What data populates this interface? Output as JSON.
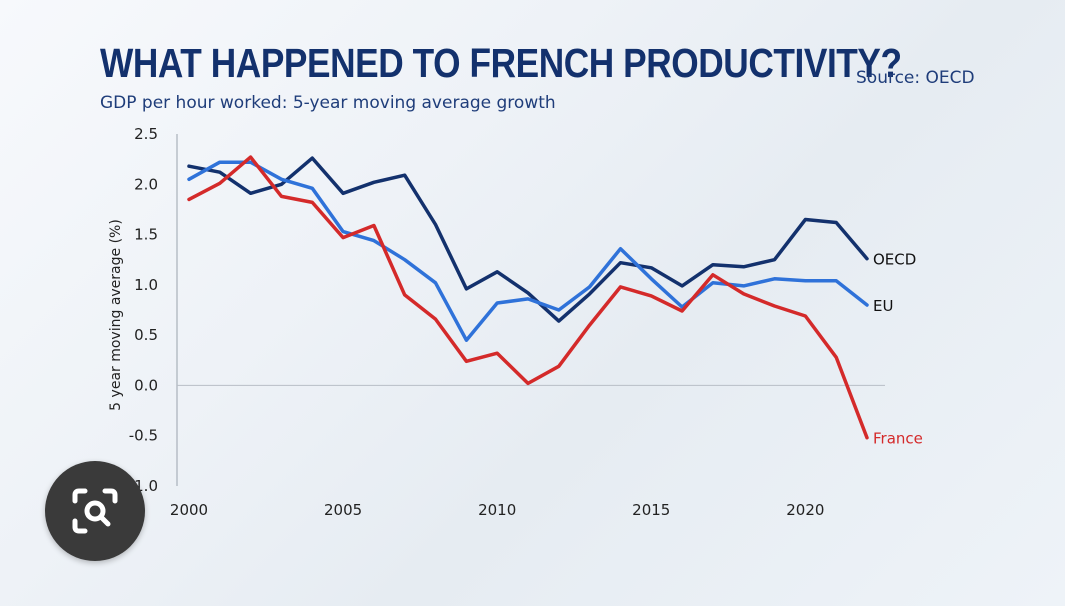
{
  "header": {
    "title": "WHAT HAPPENED TO FRENCH PRODUCTIVITY?",
    "subtitle": "GDP per hour worked: 5-year moving average growth",
    "source": "Source: OECD"
  },
  "lens_button": {
    "icon": "lens-search-icon"
  },
  "chart_data": {
    "type": "line",
    "title": "WHAT HAPPENED TO FRENCH PRODUCTIVITY?",
    "subtitle": "GDP per hour worked: 5-year moving average growth",
    "xlabel": "",
    "ylabel": "5 year moving average (%)",
    "xlim": [
      2000,
      2022
    ],
    "ylim": [
      -1.0,
      2.5
    ],
    "x_ticks": [
      2000,
      2005,
      2010,
      2015,
      2020
    ],
    "y_ticks": [
      2.5,
      2.0,
      1.5,
      1.0,
      0.5,
      0.0,
      -0.5,
      -1.0
    ],
    "y_tick_labels": [
      "2.5",
      "2.0",
      "1.5",
      "1.0",
      "0.5",
      "0.0",
      "-0.5",
      "-1.0"
    ],
    "x": [
      2000,
      2001,
      2002,
      2003,
      2004,
      2005,
      2006,
      2007,
      2008,
      2009,
      2010,
      2011,
      2012,
      2013,
      2014,
      2015,
      2016,
      2017,
      2018,
      2019,
      2020,
      2021,
      2022
    ],
    "series": [
      {
        "name": "OECD",
        "color": "#13316d",
        "values": [
          2.18,
          2.12,
          1.91,
          2.0,
          2.26,
          1.91,
          2.02,
          2.09,
          1.6,
          0.96,
          1.13,
          0.92,
          0.64,
          0.91,
          1.22,
          1.17,
          0.99,
          1.2,
          1.18,
          1.25,
          1.65,
          1.62,
          1.26
        ]
      },
      {
        "name": "EU",
        "color": "#2f72d9",
        "values": [
          2.05,
          2.22,
          2.22,
          2.05,
          1.96,
          1.53,
          1.44,
          1.25,
          1.02,
          0.45,
          0.82,
          0.86,
          0.75,
          0.98,
          1.36,
          1.06,
          0.78,
          1.02,
          0.99,
          1.06,
          1.04,
          1.04,
          0.8
        ]
      },
      {
        "name": "France",
        "color": "#d42a2a",
        "values": [
          1.85,
          2.01,
          2.27,
          1.88,
          1.82,
          1.47,
          1.59,
          0.9,
          0.66,
          0.24,
          0.32,
          0.02,
          0.19,
          0.6,
          0.98,
          0.89,
          0.74,
          1.1,
          0.91,
          0.79,
          0.69,
          0.28,
          -0.52
        ]
      }
    ]
  }
}
